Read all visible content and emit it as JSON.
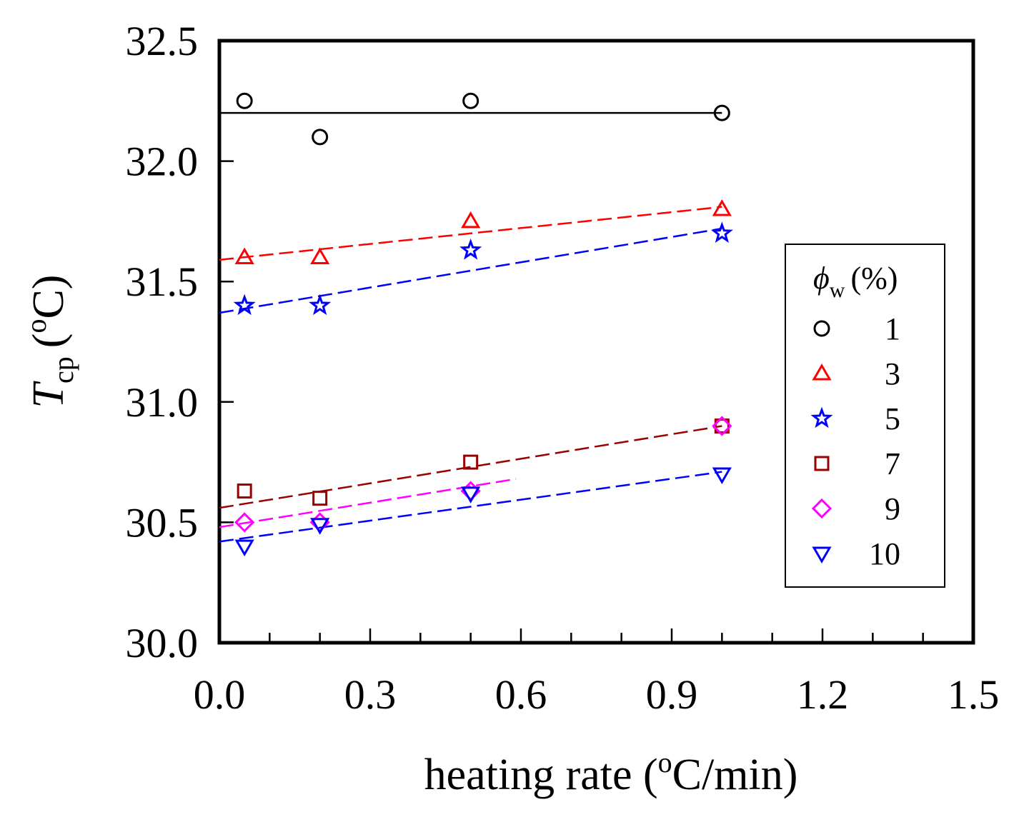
{
  "chart_data": {
    "type": "scatter",
    "x_axis": {
      "label_prefix": "heating rate (",
      "label_sup": "o",
      "label_suffix": "C/min)",
      "range": [
        0.0,
        1.5
      ],
      "major_ticks": [
        "0.0",
        "0.3",
        "0.6",
        "0.9",
        "1.2",
        "1.5"
      ],
      "minor_step": 0.1
    },
    "y_axis": {
      "label_main": "T",
      "label_sub": "cp",
      "label_paren_open": "(",
      "label_sup": "o",
      "label_paren_close": "C)",
      "range": [
        30.0,
        32.5
      ],
      "major_ticks": [
        "30.0",
        "30.5",
        "31.0",
        "31.5",
        "32.0",
        "32.5"
      ]
    },
    "legend": {
      "title_symbol": "ϕ",
      "title_sub": "w",
      "title_suffix": "(%)",
      "position": "right"
    },
    "grid": false,
    "series": [
      {
        "name": "1",
        "marker": "circle",
        "color": "#000000",
        "points": [
          [
            0.05,
            32.25
          ],
          [
            0.2,
            32.1
          ],
          [
            0.5,
            32.25
          ],
          [
            1.0,
            32.2
          ]
        ],
        "fit": {
          "x": [
            0.0,
            1.0
          ],
          "y": [
            32.2,
            32.2
          ],
          "dash": false
        }
      },
      {
        "name": "3",
        "marker": "triangle-up",
        "color": "#ff0000",
        "points": [
          [
            0.05,
            31.6
          ],
          [
            0.2,
            31.6
          ],
          [
            0.5,
            31.75
          ],
          [
            1.0,
            31.8
          ]
        ],
        "fit": {
          "x": [
            0.0,
            1.0
          ],
          "y": [
            31.59,
            31.81
          ],
          "dash": true
        }
      },
      {
        "name": "5",
        "marker": "star",
        "color": "#0000ff",
        "points": [
          [
            0.05,
            31.4
          ],
          [
            0.2,
            31.4
          ],
          [
            0.5,
            31.63
          ],
          [
            1.0,
            31.7
          ]
        ],
        "fit": {
          "x": [
            0.0,
            1.0
          ],
          "y": [
            31.37,
            31.72
          ],
          "dash": true
        }
      },
      {
        "name": "7",
        "marker": "square",
        "color": "#990000",
        "points": [
          [
            0.05,
            30.63
          ],
          [
            0.2,
            30.6
          ],
          [
            0.5,
            30.75
          ],
          [
            1.0,
            30.9
          ]
        ],
        "fit": {
          "x": [
            0.0,
            1.0
          ],
          "y": [
            30.56,
            30.9
          ],
          "dash": true
        }
      },
      {
        "name": "9",
        "marker": "diamond",
        "color": "#ff00ff",
        "points": [
          [
            0.05,
            30.5
          ],
          [
            0.2,
            30.5
          ],
          [
            0.5,
            30.63
          ],
          [
            1.0,
            30.9
          ]
        ],
        "fit": {
          "x": [
            0.0,
            0.59
          ],
          "y": [
            30.48,
            30.68
          ],
          "dash": true
        }
      },
      {
        "name": "10",
        "marker": "triangle-down",
        "color": "#0000ff",
        "points": [
          [
            0.05,
            30.4
          ],
          [
            0.2,
            30.49
          ],
          [
            0.5,
            30.62
          ],
          [
            1.0,
            30.7
          ]
        ],
        "fit": {
          "x": [
            0.0,
            1.0
          ],
          "y": [
            30.42,
            30.71
          ],
          "dash": true
        }
      }
    ]
  }
}
